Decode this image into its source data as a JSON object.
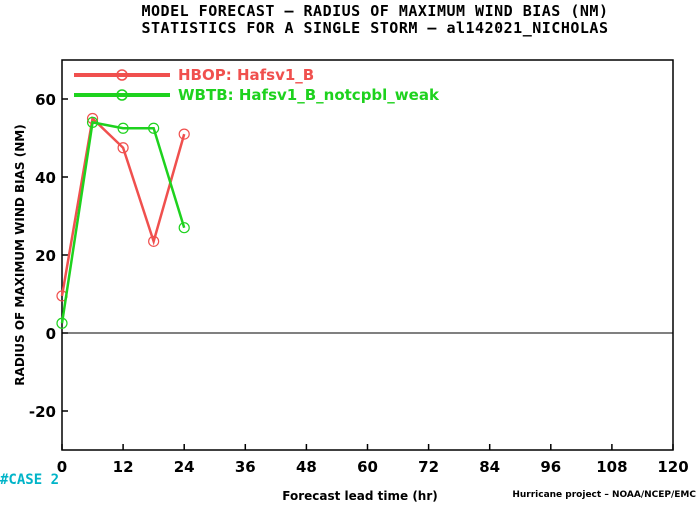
{
  "title_line1": "MODEL FORECAST – RADIUS OF MAXIMUM WIND BIAS (NM)",
  "title_line2": "STATISTICS FOR A SINGLE STORM – al142021_NICHOLAS",
  "case_label": "#CASE  2",
  "credit": "Hurricane project – NOAA/NCEP/EMC",
  "colors": {
    "hbop": "#f0504e",
    "wbtb": "#1ed21e",
    "zero_line": "#000000",
    "case": "#00b4c8"
  },
  "chart_data": {
    "type": "line",
    "xlabel": "Forecast lead time (hr)",
    "ylabel": "RADIUS OF MAXIMUM WIND BIAS (NM)",
    "xlim": [
      0,
      120
    ],
    "ylim": [
      -30,
      70
    ],
    "xticks": [
      0,
      12,
      24,
      36,
      48,
      60,
      72,
      84,
      96,
      108,
      120
    ],
    "yticks": [
      -20,
      0,
      20,
      40,
      60
    ],
    "legend_position": "top-left",
    "series": [
      {
        "name": "HBOP: Hafsv1_B",
        "color": "#f0504e",
        "x": [
          0,
          6,
          12,
          18,
          24
        ],
        "y": [
          9.5,
          55,
          47.5,
          23.5,
          51
        ]
      },
      {
        "name": "WBTB: Hafsv1_B_notcpbl_weak",
        "color": "#1ed21e",
        "x": [
          0,
          6,
          12,
          18,
          24
        ],
        "y": [
          2.5,
          54,
          52.5,
          52.5,
          27
        ]
      }
    ]
  }
}
